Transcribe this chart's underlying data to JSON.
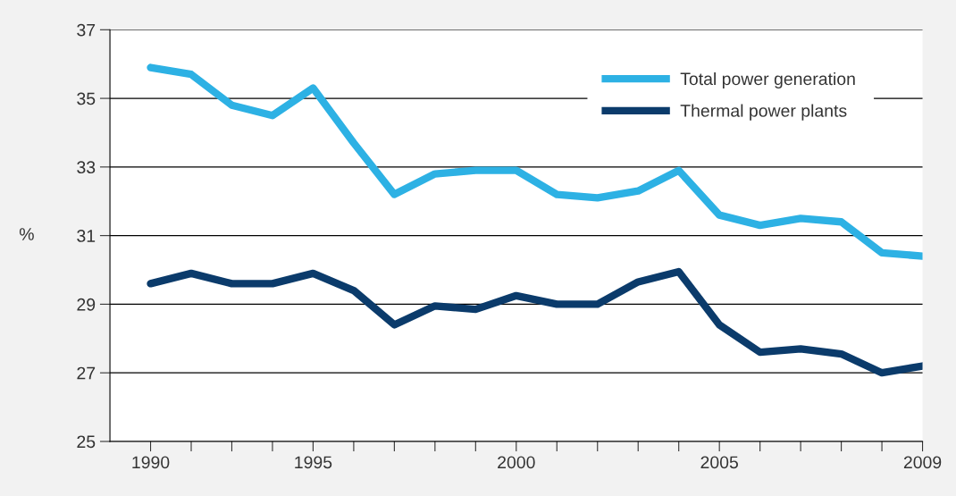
{
  "chart_data": {
    "type": "line",
    "ylabel": "%",
    "categories": [
      "1990",
      null,
      null,
      null,
      "1995",
      null,
      null,
      null,
      null,
      "2000",
      null,
      null,
      null,
      null,
      "2005",
      null,
      null,
      null,
      null,
      "2009"
    ],
    "series": [
      {
        "name": "Total power generation",
        "color": "#2db1e4",
        "values": [
          35.9,
          35.7,
          34.8,
          34.5,
          35.3,
          33.7,
          32.2,
          32.8,
          32.9,
          32.9,
          32.2,
          32.1,
          32.3,
          32.9,
          31.6,
          31.3,
          31.5,
          31.4,
          30.5,
          30.4
        ]
      },
      {
        "name": "Thermal power plants",
        "color": "#0b3b6b",
        "values": [
          29.6,
          29.9,
          29.6,
          29.6,
          29.9,
          29.4,
          28.4,
          28.95,
          28.85,
          29.25,
          29.0,
          29.0,
          29.65,
          29.95,
          28.4,
          27.6,
          27.7,
          27.55,
          27.0,
          27.2
        ]
      }
    ],
    "ylim": [
      25,
      37
    ],
    "yticks": [
      25,
      27,
      29,
      31,
      33,
      35,
      37
    ],
    "grid": "y",
    "legend": "top right",
    "marker": "none",
    "line_style": "solid"
  }
}
